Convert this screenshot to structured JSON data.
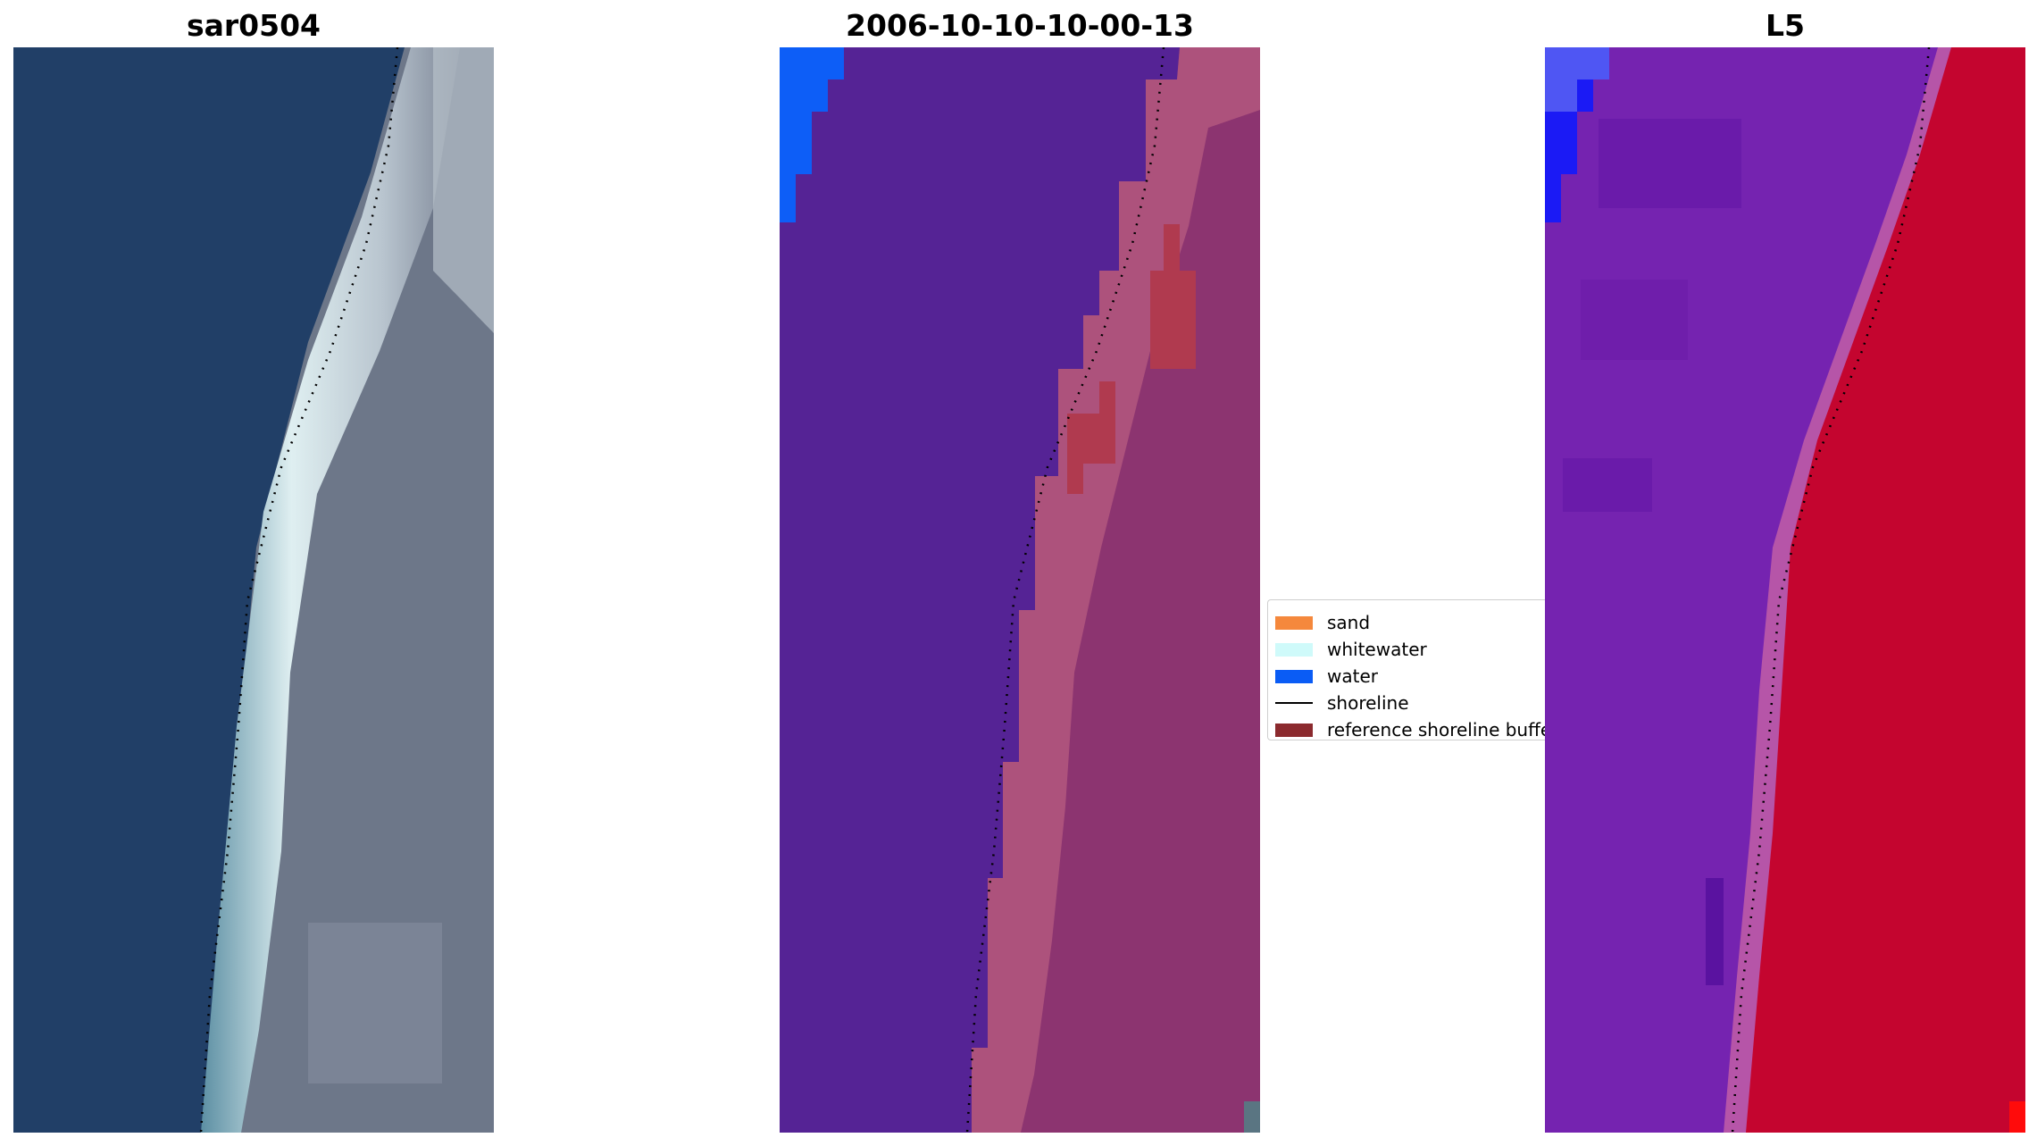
{
  "panels": [
    {
      "title": "sar0504",
      "icon": "rgb-image"
    },
    {
      "title": "2006-10-10-10-00-13",
      "icon": "classified-image"
    },
    {
      "title": "L5",
      "icon": "index-image"
    }
  ],
  "legend": {
    "items": [
      {
        "label": "sand",
        "type": "patch",
        "color": "#f5883c"
      },
      {
        "label": "whitewater",
        "type": "patch",
        "color": "#cffafa"
      },
      {
        "label": "water",
        "type": "patch",
        "color": "#0a5cf5"
      },
      {
        "label": "shoreline",
        "type": "line",
        "color": "#000000"
      },
      {
        "label": "reference shoreline buffer",
        "type": "patch",
        "color": "#8b2a2e"
      }
    ]
  },
  "colors": {
    "rgb_water": "#1f3e66",
    "rgb_surf": "#e6f2f4",
    "rgb_land": "#7c8493",
    "class_background": "#552395",
    "class_land": "#8c3470",
    "class_foam": "#b3587e",
    "class_buffer_sand": "#b03a4f",
    "class_water_blue": "#0d5ef7",
    "index_water": "#7523b0",
    "index_land": "#c4052f",
    "index_transition": "#b655a8",
    "index_blue": "#1b1af5"
  }
}
